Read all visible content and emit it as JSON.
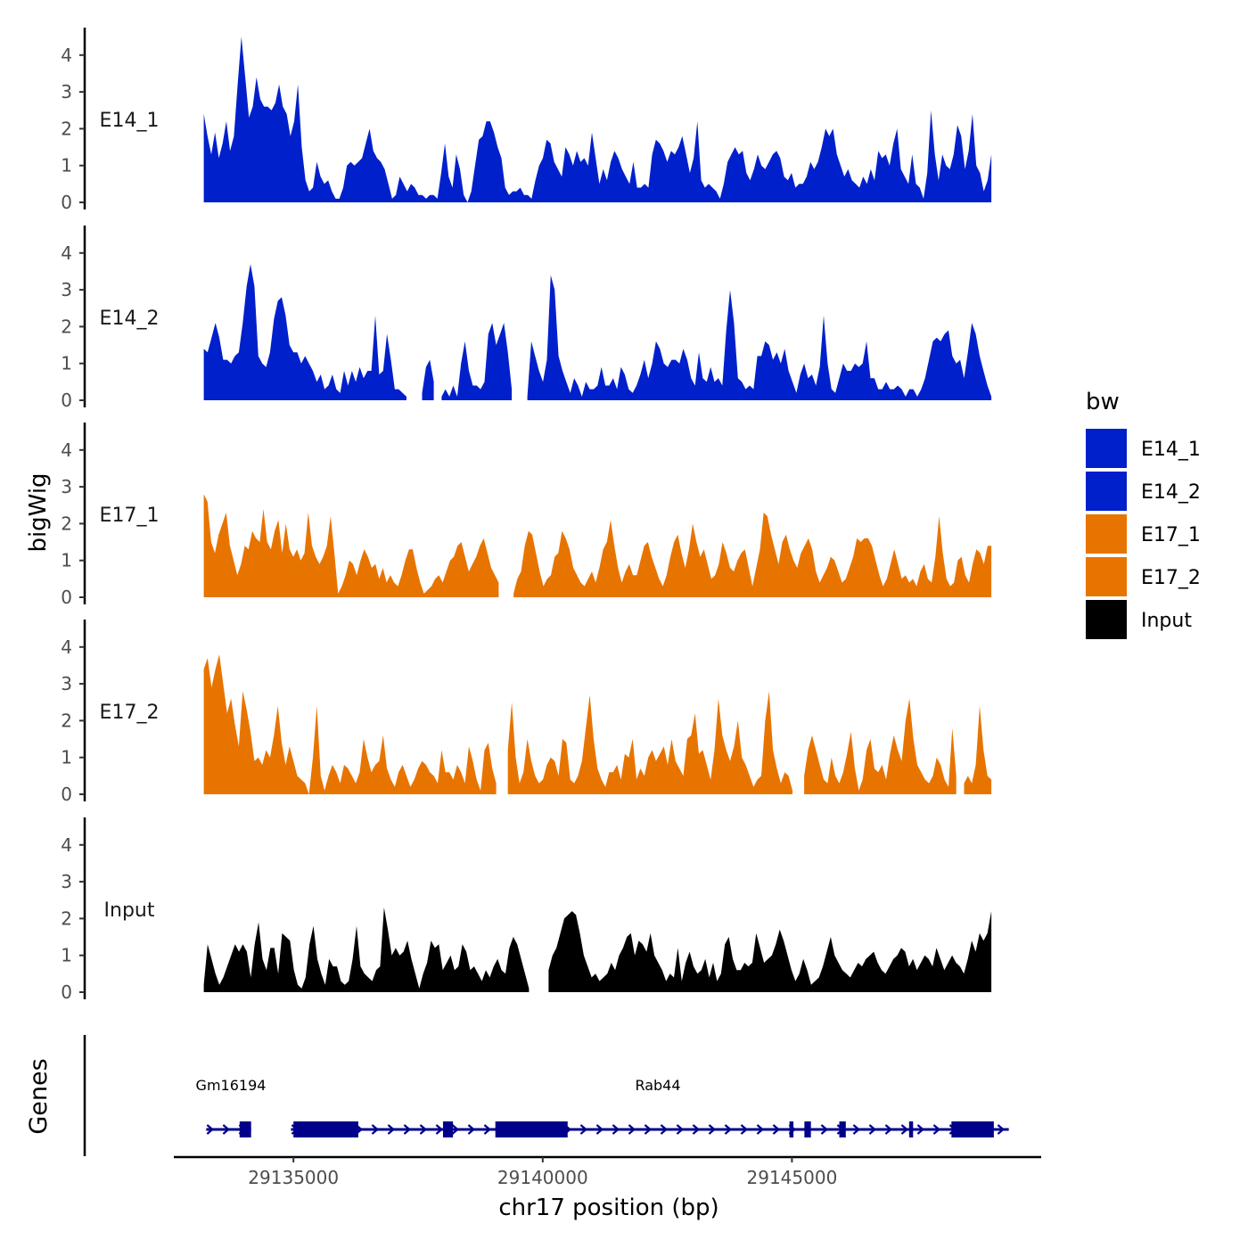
{
  "chart_data": {
    "type": "area",
    "ylabel": "bigWig",
    "xlabel": "chr17 position (bp)",
    "x_ticks": [
      29135000,
      29140000,
      29145000
    ],
    "x_tick_labels": [
      "29135000",
      "29140000",
      "29145000"
    ],
    "x_range": [
      29132600,
      29150000
    ],
    "data_range": [
      29133200,
      29149000
    ],
    "y_ticks": [
      0,
      1,
      2,
      3,
      4
    ],
    "y_tick_labels": [
      "0",
      "1",
      "2",
      "3",
      "4"
    ],
    "ylim": [
      0,
      4.7
    ],
    "legend": {
      "title": "bw",
      "entries": [
        {
          "name": "E14_1",
          "color": "#0020CC"
        },
        {
          "name": "E14_2",
          "color": "#0020CC"
        },
        {
          "name": "E17_1",
          "color": "#E87400"
        },
        {
          "name": "E17_2",
          "color": "#E87400"
        },
        {
          "name": "Input",
          "color": "#000000"
        }
      ]
    },
    "series": [
      {
        "name": "E14_1",
        "color": "#0020CC",
        "values": [
          2.4,
          1.8,
          1.3,
          1.9,
          1.2,
          1.6,
          2.2,
          1.4,
          1.8,
          3.2,
          4.5,
          3.4,
          2.3,
          2.6,
          3.4,
          2.8,
          2.6,
          2.6,
          2.5,
          2.7,
          3.2,
          2.6,
          2.4,
          1.8,
          2.2,
          3.2,
          1.5,
          0.6,
          0.3,
          0.4,
          1.1,
          0.7,
          0.5,
          0.6,
          0.3,
          0.1,
          0.1,
          0.4,
          1.0,
          1.1,
          1.0,
          1.1,
          1.2,
          1.6,
          2.0,
          1.4,
          1.2,
          1.1,
          0.9,
          0.5,
          0.1,
          0.2,
          0.7,
          0.5,
          0.3,
          0.5,
          0.4,
          0.2,
          0.2,
          0.1,
          0.2,
          0.2,
          0.1,
          0.8,
          1.6,
          0.7,
          0.4,
          1.3,
          0.9,
          0.2,
          0.0,
          0.3,
          1.0,
          1.7,
          1.8,
          2.2,
          2.2,
          1.9,
          1.5,
          1.2,
          0.4,
          0.2,
          0.3,
          0.3,
          0.4,
          0.2,
          0.2,
          0.1,
          0.6,
          1.0,
          1.2,
          1.7,
          1.6,
          1.1,
          0.9,
          0.7,
          1.5,
          1.3,
          1.0,
          1.4,
          1.1,
          1.2,
          1.0,
          1.9,
          1.2,
          0.5,
          0.9,
          0.6,
          1.1,
          1.4,
          1.2,
          0.9,
          0.7,
          0.5,
          1.1,
          0.4,
          0.4,
          0.5,
          0.4,
          1.3,
          1.7,
          1.6,
          1.4,
          1.1,
          1.4,
          1.3,
          1.5,
          1.8,
          1.3,
          0.8,
          1.2,
          2.2,
          0.6,
          0.4,
          0.5,
          0.4,
          0.3,
          0.1,
          0.5,
          1.1,
          1.3,
          1.5,
          1.3,
          1.4,
          0.8,
          0.6,
          0.9,
          1.3,
          1.0,
          0.9,
          1.1,
          1.3,
          1.4,
          1.2,
          0.7,
          0.6,
          0.8,
          0.4,
          0.5,
          0.5,
          0.7,
          1.1,
          0.9,
          1.1,
          1.5,
          2.0,
          1.8,
          2.0,
          1.3,
          1.0,
          0.7,
          0.9,
          0.6,
          0.5,
          0.4,
          0.7,
          0.5,
          0.9,
          0.6,
          1.4,
          1.2,
          1.3,
          1.0,
          1.6,
          2.0,
          0.9,
          0.7,
          0.5,
          1.3,
          0.5,
          0.4,
          0.1,
          0.8,
          2.5,
          1.3,
          0.6,
          1.3,
          1.0,
          0.9,
          1.3,
          2.1,
          1.8,
          0.9,
          1.4,
          2.4,
          1.0,
          0.8,
          0.3,
          0.6,
          1.3
        ]
      },
      {
        "name": "E14_2",
        "color": "#0020CC",
        "values": [
          1.4,
          1.3,
          1.7,
          2.1,
          1.7,
          1.1,
          1.1,
          1.0,
          1.2,
          1.3,
          2.1,
          3.1,
          3.7,
          3.1,
          1.2,
          1.0,
          0.9,
          1.3,
          2.2,
          2.7,
          2.8,
          2.3,
          1.5,
          1.3,
          1.3,
          1.0,
          1.2,
          1.0,
          0.8,
          0.5,
          0.7,
          0.3,
          0.4,
          0.7,
          0.3,
          0.2,
          0.8,
          0.4,
          0.8,
          0.5,
          0.9,
          0.6,
          0.8,
          0.8,
          2.3,
          0.7,
          0.8,
          1.8,
          1.1,
          0.3,
          0.3,
          0.2,
          0.1,
          null,
          null,
          null,
          0.2,
          0.9,
          1.1,
          0.5,
          null,
          0.1,
          0.3,
          0.1,
          0.4,
          0.1,
          1.0,
          1.6,
          0.8,
          0.4,
          0.4,
          0.3,
          0.5,
          1.8,
          2.1,
          1.5,
          1.8,
          2.1,
          1.3,
          0.3,
          null,
          null,
          null,
          0.1,
          1.6,
          1.2,
          0.8,
          0.5,
          1.1,
          3.4,
          3.0,
          1.2,
          0.8,
          0.5,
          0.2,
          0.6,
          0.4,
          0.1,
          0.5,
          0.3,
          0.3,
          0.4,
          0.9,
          0.4,
          0.4,
          0.6,
          0.3,
          0.9,
          0.7,
          0.3,
          0.2,
          0.4,
          0.7,
          1.1,
          0.6,
          1.0,
          1.6,
          1.4,
          1.0,
          0.9,
          1.1,
          1.1,
          1.0,
          1.4,
          1.1,
          0.6,
          0.4,
          1.3,
          0.6,
          0.5,
          0.9,
          0.5,
          0.6,
          0.4,
          1.9,
          3.0,
          2.1,
          0.6,
          0.5,
          0.3,
          0.4,
          0.3,
          1.2,
          1.2,
          1.6,
          1.5,
          1.1,
          1.3,
          1.0,
          1.4,
          0.8,
          0.5,
          0.2,
          0.7,
          1.0,
          0.6,
          0.7,
          0.4,
          0.9,
          2.3,
          1.0,
          0.3,
          0.2,
          0.6,
          1.0,
          0.8,
          0.8,
          1.0,
          0.9,
          1.0,
          1.6,
          0.6,
          0.6,
          0.3,
          0.3,
          0.5,
          0.3,
          0.3,
          0.4,
          0.3,
          0.1,
          0.3,
          0.3,
          0.1,
          0.3,
          0.6,
          1.1,
          1.6,
          1.7,
          1.6,
          1.8,
          1.9,
          1.2,
          1.0,
          1.1,
          0.6,
          1.3,
          2.1,
          1.8,
          1.2,
          0.8,
          0.4,
          0.1
        ]
      },
      {
        "name": "E17_1",
        "color": "#E87400",
        "values": [
          2.8,
          2.6,
          1.5,
          1.2,
          1.7,
          2.0,
          2.3,
          1.4,
          1.0,
          0.6,
          0.9,
          1.4,
          1.3,
          1.8,
          1.6,
          1.5,
          2.4,
          1.5,
          1.3,
          1.8,
          2.1,
          1.2,
          2.0,
          1.3,
          1.1,
          1.3,
          1.0,
          1.2,
          2.3,
          1.4,
          1.1,
          0.9,
          1.1,
          1.4,
          2.2,
          1.2,
          0.1,
          0.3,
          0.6,
          1.0,
          0.9,
          0.6,
          1.0,
          1.3,
          1.1,
          0.8,
          0.9,
          0.5,
          0.8,
          0.4,
          0.6,
          0.4,
          0.3,
          0.6,
          1.0,
          1.3,
          1.3,
          0.8,
          0.4,
          0.1,
          0.2,
          0.3,
          0.5,
          0.6,
          0.4,
          0.7,
          1.0,
          1.1,
          1.4,
          1.5,
          1.1,
          0.7,
          0.9,
          1.1,
          1.4,
          1.6,
          1.2,
          0.8,
          0.6,
          0.4,
          null,
          null,
          null,
          0.1,
          0.5,
          0.7,
          1.4,
          1.8,
          1.7,
          1.2,
          0.7,
          0.3,
          0.5,
          0.6,
          1.1,
          1.2,
          1.8,
          1.6,
          1.3,
          0.8,
          0.6,
          0.4,
          0.3,
          0.5,
          0.7,
          0.4,
          0.8,
          1.3,
          1.5,
          2.1,
          1.4,
          0.8,
          0.4,
          0.7,
          0.9,
          0.6,
          0.6,
          1.0,
          1.4,
          1.5,
          1.1,
          0.8,
          0.5,
          0.3,
          0.6,
          1.1,
          1.5,
          1.7,
          1.2,
          0.8,
          1.3,
          2.0,
          1.5,
          1.1,
          1.3,
          0.9,
          0.5,
          0.6,
          0.9,
          1.5,
          1.2,
          0.8,
          0.7,
          1.0,
          1.2,
          1.3,
          0.8,
          0.3,
          0.8,
          1.3,
          2.3,
          2.2,
          1.7,
          1.3,
          0.9,
          1.5,
          1.7,
          1.3,
          1.0,
          0.8,
          1.2,
          1.4,
          1.6,
          1.3,
          0.7,
          0.4,
          0.6,
          0.8,
          1.1,
          1.0,
          0.7,
          0.4,
          0.5,
          0.8,
          1.1,
          1.6,
          1.5,
          1.6,
          1.6,
          1.4,
          1.0,
          0.6,
          0.3,
          0.5,
          0.9,
          1.3,
          0.9,
          0.5,
          0.6,
          0.4,
          0.5,
          0.3,
          0.7,
          0.9,
          0.5,
          0.4,
          1.1,
          2.2,
          1.2,
          0.5,
          0.3,
          0.4,
          1.0,
          1.1,
          0.6,
          0.4,
          0.9,
          1.3,
          1.2,
          0.9,
          1.4,
          1.4
        ]
      },
      {
        "name": "E17_2",
        "color": "#E87400",
        "values": [
          3.4,
          3.7,
          2.9,
          3.4,
          3.8,
          3.0,
          2.2,
          2.6,
          1.9,
          1.3,
          2.8,
          2.3,
          1.7,
          0.9,
          1.0,
          0.8,
          1.2,
          1.0,
          1.6,
          2.4,
          1.4,
          0.8,
          1.3,
          0.9,
          0.5,
          0.4,
          0.3,
          0.0,
          1.0,
          2.4,
          0.5,
          0.1,
          0.5,
          0.8,
          0.6,
          0.3,
          0.8,
          0.7,
          0.5,
          0.3,
          0.6,
          1.5,
          1.0,
          0.6,
          0.8,
          0.9,
          1.6,
          0.7,
          0.4,
          0.2,
          0.6,
          0.8,
          0.5,
          0.2,
          0.4,
          0.7,
          0.9,
          0.8,
          0.6,
          0.5,
          0.3,
          1.2,
          0.6,
          0.6,
          0.4,
          0.8,
          0.6,
          0.3,
          1.3,
          0.9,
          0.4,
          0.1,
          1.2,
          1.4,
          0.7,
          0.3,
          null,
          null,
          1.2,
          2.5,
          1.0,
          0.3,
          0.6,
          1.5,
          0.9,
          0.5,
          0.3,
          0.4,
          0.8,
          1.0,
          0.9,
          0.5,
          1.5,
          1.4,
          0.4,
          0.3,
          0.5,
          0.9,
          1.8,
          2.7,
          1.5,
          0.7,
          0.4,
          0.2,
          0.6,
          0.6,
          0.8,
          0.4,
          1.1,
          1.0,
          1.5,
          0.4,
          0.7,
          0.5,
          1.0,
          1.2,
          0.9,
          1.1,
          1.3,
          0.8,
          1.5,
          0.9,
          0.7,
          0.5,
          1.5,
          1.6,
          2.2,
          1.1,
          1.2,
          0.8,
          0.4,
          1.2,
          2.6,
          1.6,
          1.2,
          0.9,
          1.3,
          2.0,
          1.0,
          0.8,
          0.5,
          0.2,
          0.4,
          0.5,
          2.0,
          2.8,
          1.2,
          0.7,
          0.3,
          0.6,
          0.5,
          0.1,
          null,
          null,
          0.5,
          1.2,
          1.6,
          1.2,
          0.8,
          0.4,
          0.3,
          1.0,
          0.5,
          0.3,
          0.6,
          1.1,
          1.7,
          0.7,
          0.1,
          0.4,
          1.2,
          1.5,
          0.7,
          0.6,
          0.8,
          0.4,
          1.1,
          1.6,
          1.2,
          0.9,
          2.0,
          2.6,
          1.5,
          0.8,
          0.6,
          0.4,
          0.3,
          0.5,
          1.0,
          0.8,
          0.4,
          0.2,
          1.8,
          0.5,
          null,
          0.3,
          0.5,
          0.3,
          0.8,
          2.4,
          1.2,
          0.5,
          0.4
        ]
      },
      {
        "name": "Input",
        "color": "#000000",
        "values": [
          0.2,
          1.3,
          0.9,
          0.5,
          0.2,
          0.4,
          0.7,
          1.0,
          1.3,
          1.1,
          1.3,
          1.1,
          0.4,
          1.3,
          1.9,
          0.9,
          0.6,
          1.2,
          1.2,
          0.5,
          1.6,
          1.5,
          1.4,
          0.6,
          0.2,
          0.1,
          0.4,
          1.3,
          1.8,
          0.9,
          0.5,
          0.2,
          0.9,
          0.7,
          0.7,
          0.3,
          0.2,
          0.3,
          0.9,
          1.8,
          0.7,
          0.5,
          0.4,
          0.3,
          0.6,
          0.7,
          2.3,
          1.7,
          1.0,
          1.2,
          1.0,
          1.1,
          1.4,
          0.9,
          0.5,
          0.1,
          0.5,
          0.8,
          1.4,
          1.2,
          1.3,
          0.6,
          0.8,
          1.0,
          0.6,
          0.7,
          1.3,
          1.1,
          0.6,
          0.7,
          0.5,
          0.3,
          0.6,
          0.4,
          0.7,
          0.9,
          0.6,
          0.5,
          1.2,
          1.5,
          1.3,
          0.9,
          0.5,
          0.1,
          null,
          null,
          null,
          null,
          0.6,
          1.0,
          1.2,
          1.6,
          2.0,
          2.1,
          2.2,
          2.1,
          1.6,
          1.0,
          0.7,
          0.4,
          0.5,
          0.3,
          0.4,
          0.5,
          0.8,
          0.6,
          1.0,
          1.2,
          1.5,
          1.6,
          1.0,
          1.4,
          1.3,
          1.1,
          1.6,
          1.0,
          0.8,
          0.6,
          0.3,
          0.5,
          0.4,
          1.2,
          0.3,
          0.8,
          1.1,
          0.7,
          0.5,
          0.6,
          0.9,
          0.4,
          0.8,
          0.3,
          0.5,
          1.3,
          1.5,
          0.9,
          0.6,
          0.6,
          0.8,
          0.7,
          0.8,
          1.6,
          1.2,
          0.8,
          0.9,
          1.0,
          1.3,
          1.7,
          1.4,
          1.0,
          0.6,
          0.3,
          0.5,
          0.9,
          0.6,
          0.2,
          0.3,
          0.4,
          0.7,
          1.1,
          1.5,
          1.0,
          0.8,
          0.6,
          0.5,
          0.4,
          0.6,
          0.8,
          0.7,
          0.9,
          1.0,
          1.1,
          0.8,
          0.6,
          0.5,
          0.7,
          0.9,
          1.0,
          1.2,
          1.1,
          0.7,
          0.9,
          0.6,
          0.8,
          1.0,
          0.9,
          0.7,
          1.2,
          0.9,
          0.6,
          0.8,
          1.0,
          0.8,
          0.7,
          0.5,
          0.9,
          1.4,
          1.1,
          1.6,
          1.4,
          1.6,
          2.2
        ]
      }
    ],
    "genes_track": {
      "label": "Genes",
      "genes": [
        {
          "name": "Gm16194",
          "strand": "+",
          "start": 29133250,
          "end": 29134150,
          "blocks": [
            [
              29133920,
              29134150
            ]
          ]
        },
        {
          "name": "Rab44",
          "strand": "+",
          "start": 29134950,
          "end": 29149350,
          "blocks": [
            [
              29135000,
              29136300
            ],
            [
              29138000,
              29138200
            ],
            [
              29139050,
              29140500
            ],
            [
              29144950,
              29145030
            ],
            [
              29145250,
              29145380
            ],
            [
              29145950,
              29146080
            ],
            [
              29147350,
              29147430
            ],
            [
              29148200,
              29149050
            ]
          ]
        }
      ]
    }
  }
}
